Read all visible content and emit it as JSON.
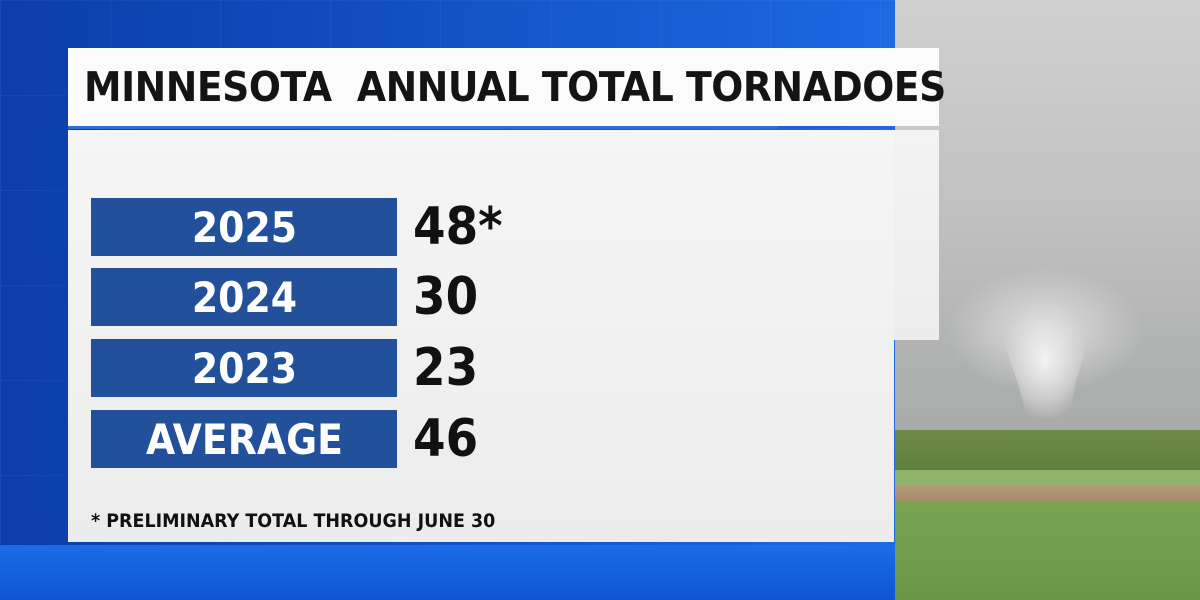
{
  "title": "MINNESOTA  ANNUAL TOTAL TORNADOES",
  "rows": [
    {
      "label": "2025",
      "value": "48*"
    },
    {
      "label": "2024",
      "value": "30"
    },
    {
      "label": "2023",
      "value": "23"
    },
    {
      "label": "AVERAGE",
      "value": "46"
    }
  ],
  "footnote": "* PRELIMINARY TOTAL THROUGH JUNE 30",
  "colors": {
    "label_box": "#23509a",
    "background_blue": "#1a63de",
    "card": "#f2f2f2",
    "text": "#111111"
  },
  "photo": {
    "icon": "tornado-photo"
  }
}
